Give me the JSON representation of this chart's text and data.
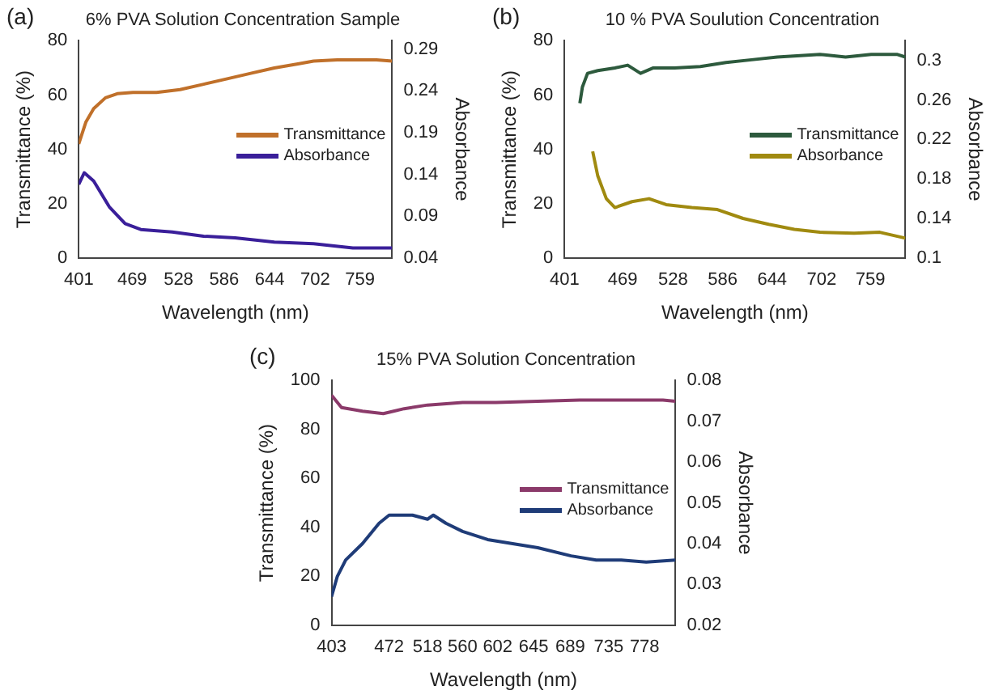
{
  "chart_data": [
    {
      "type": "line",
      "title": "6% PVA Solution Concentration Sample",
      "annotations": [
        "(a)"
      ],
      "xlabel": "Wavelength (nm)",
      "ylabel": "Transmittance (%)",
      "y2label": "Absorbance",
      "xlim": [
        401,
        800
      ],
      "xticks": [
        401,
        469,
        528,
        586,
        644,
        702,
        759
      ],
      "ylim": [
        0,
        80
      ],
      "yticks": [
        0,
        20,
        40,
        60,
        80
      ],
      "y2lim": [
        0.04,
        0.3
      ],
      "y2ticks": [
        0.04,
        0.09,
        0.14,
        0.19,
        0.24,
        0.29
      ],
      "legend": "right",
      "grid": false,
      "marker": "none",
      "line_style": "solid",
      "series": [
        {
          "name": "Transmittance",
          "color": "#c0702a",
          "x": [
            401,
            410,
            420,
            435,
            450,
            470,
            500,
            530,
            560,
            590,
            620,
            650,
            680,
            700,
            730,
            760,
            780,
            800
          ],
          "values": [
            42,
            50,
            55,
            59,
            60.5,
            61,
            61,
            62,
            64,
            66,
            68,
            70,
            71.5,
            72.5,
            73,
            73,
            73,
            72.5
          ]
        },
        {
          "name": "Absorbance",
          "color": "#3a1f9a",
          "axis": "y2",
          "x": [
            401,
            408,
            420,
            440,
            460,
            480,
            520,
            560,
            600,
            650,
            700,
            750,
            800
          ],
          "values": [
            0.128,
            0.142,
            0.132,
            0.101,
            0.081,
            0.074,
            0.071,
            0.066,
            0.064,
            0.059,
            0.057,
            0.052,
            0.052
          ]
        }
      ]
    },
    {
      "type": "line",
      "title": "10 % PVA Soulution Concentration",
      "annotations": [
        "(b)"
      ],
      "xlabel": "Wavelength (nm)",
      "ylabel": "Transmittance (%)",
      "y2label": "Absorbance",
      "xlim": [
        401,
        800
      ],
      "xticks": [
        401,
        469,
        528,
        586,
        644,
        702,
        759
      ],
      "ylim": [
        0,
        80
      ],
      "yticks": [
        0,
        20,
        40,
        60,
        80
      ],
      "y2lim": [
        0.1,
        0.32
      ],
      "y2ticks": [
        0.1,
        0.14,
        0.18,
        0.22,
        0.26,
        0.3
      ],
      "legend": "right",
      "grid": false,
      "marker": "none",
      "line_style": "solid",
      "series": [
        {
          "name": "Transmittance",
          "color": "#2d5a3d",
          "x": [
            419,
            422,
            428,
            440,
            460,
            475,
            490,
            505,
            530,
            560,
            590,
            620,
            650,
            700,
            730,
            760,
            790,
            800
          ],
          "values": [
            57,
            63,
            68,
            69,
            70,
            71,
            68,
            70,
            70,
            70.5,
            72,
            73,
            74,
            75,
            74,
            75,
            75,
            74
          ]
        },
        {
          "name": "Absorbance",
          "color": "#a08a10",
          "axis": "y2",
          "x": [
            434,
            440,
            450,
            460,
            480,
            500,
            520,
            550,
            580,
            610,
            640,
            670,
            700,
            740,
            770,
            800
          ],
          "values": [
            0.208,
            0.183,
            0.16,
            0.151,
            0.157,
            0.16,
            0.154,
            0.151,
            0.149,
            0.14,
            0.134,
            0.129,
            0.126,
            0.125,
            0.126,
            0.12
          ]
        }
      ]
    },
    {
      "type": "line",
      "title": "15% PVA Solution Concentration",
      "annotations": [
        "(c)"
      ],
      "xlabel": "Wavelength (nm)",
      "ylabel": "Transmittance (%)",
      "y2label": "Absorbance",
      "xlim": [
        403,
        815
      ],
      "xticks": [
        403,
        472,
        518,
        560,
        602,
        645,
        689,
        735,
        778
      ],
      "ylim": [
        0,
        100
      ],
      "yticks": [
        0,
        20,
        40,
        60,
        80,
        100
      ],
      "y2lim": [
        0.02,
        0.08
      ],
      "y2ticks": [
        0.02,
        0.03,
        0.04,
        0.05,
        0.06,
        0.07,
        0.08
      ],
      "legend": "right",
      "grid": false,
      "marker": "none",
      "line_style": "solid",
      "series": [
        {
          "name": "Transmittance",
          "color": "#8b3a6a",
          "x": [
            403,
            415,
            440,
            465,
            490,
            518,
            560,
            600,
            650,
            700,
            750,
            800,
            815
          ],
          "values": [
            94,
            89,
            87.5,
            86.5,
            88.5,
            90,
            91,
            91,
            91.5,
            92,
            92,
            92,
            91.5
          ]
        },
        {
          "name": "Absorbance",
          "color": "#1f3c78",
          "axis": "y2",
          "x": [
            403,
            410,
            420,
            440,
            460,
            472,
            500,
            518,
            525,
            540,
            560,
            590,
            620,
            650,
            690,
            720,
            750,
            780,
            815
          ],
          "values": [
            0.027,
            0.032,
            0.036,
            0.04,
            0.045,
            0.047,
            0.047,
            0.046,
            0.047,
            0.045,
            0.043,
            0.041,
            0.04,
            0.039,
            0.037,
            0.036,
            0.036,
            0.0355,
            0.036
          ]
        }
      ]
    }
  ]
}
